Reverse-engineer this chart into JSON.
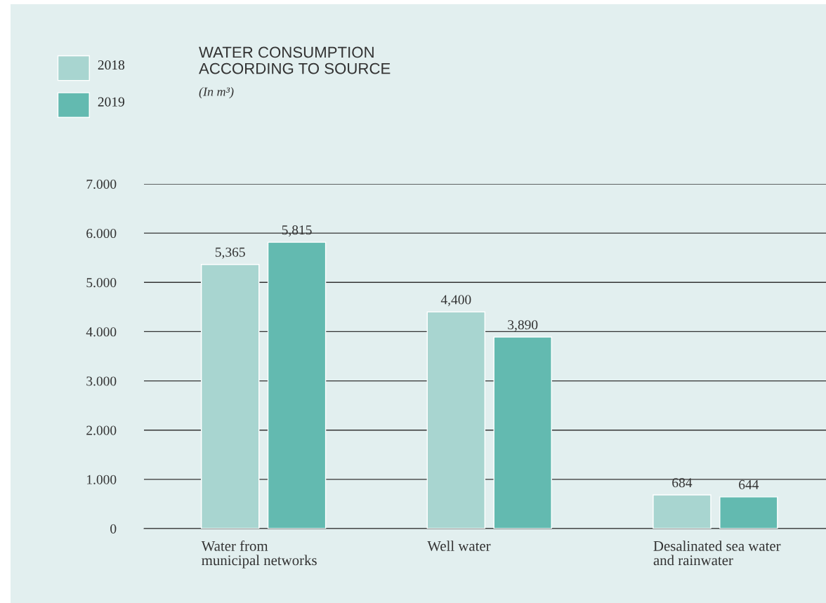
{
  "chart_data": {
    "type": "bar",
    "title": "WATER CONSUMPTION\nACCORDING TO SOURCE",
    "subtitle": "(In m³)",
    "categories": [
      "Water from\nmunicipal networks",
      "Well water",
      "Desalinated sea water\nand rainwater"
    ],
    "series": [
      {
        "name": "2018",
        "color": "#a8d5d0",
        "values": [
          5365,
          4400,
          684
        ]
      },
      {
        "name": "2019",
        "color": "#63bab0",
        "values": [
          5815,
          3890,
          644
        ]
      }
    ],
    "ylim": [
      0,
      7000
    ],
    "yticks": [
      {
        "value": 0,
        "label": "0"
      },
      {
        "value": 1000,
        "label": "1.000"
      },
      {
        "value": 2000,
        "label": "2.000"
      },
      {
        "value": 3000,
        "label": "3.000"
      },
      {
        "value": 4000,
        "label": "4.000"
      },
      {
        "value": 5000,
        "label": "5.000"
      },
      {
        "value": 6000,
        "label": "6.000"
      },
      {
        "value": 7000,
        "label": "7.000"
      }
    ],
    "grid": "y",
    "legend": "top left",
    "value_labels": [
      [
        "5,365",
        "4,400",
        "684"
      ],
      [
        "5,815",
        "3,890",
        "644"
      ]
    ]
  }
}
